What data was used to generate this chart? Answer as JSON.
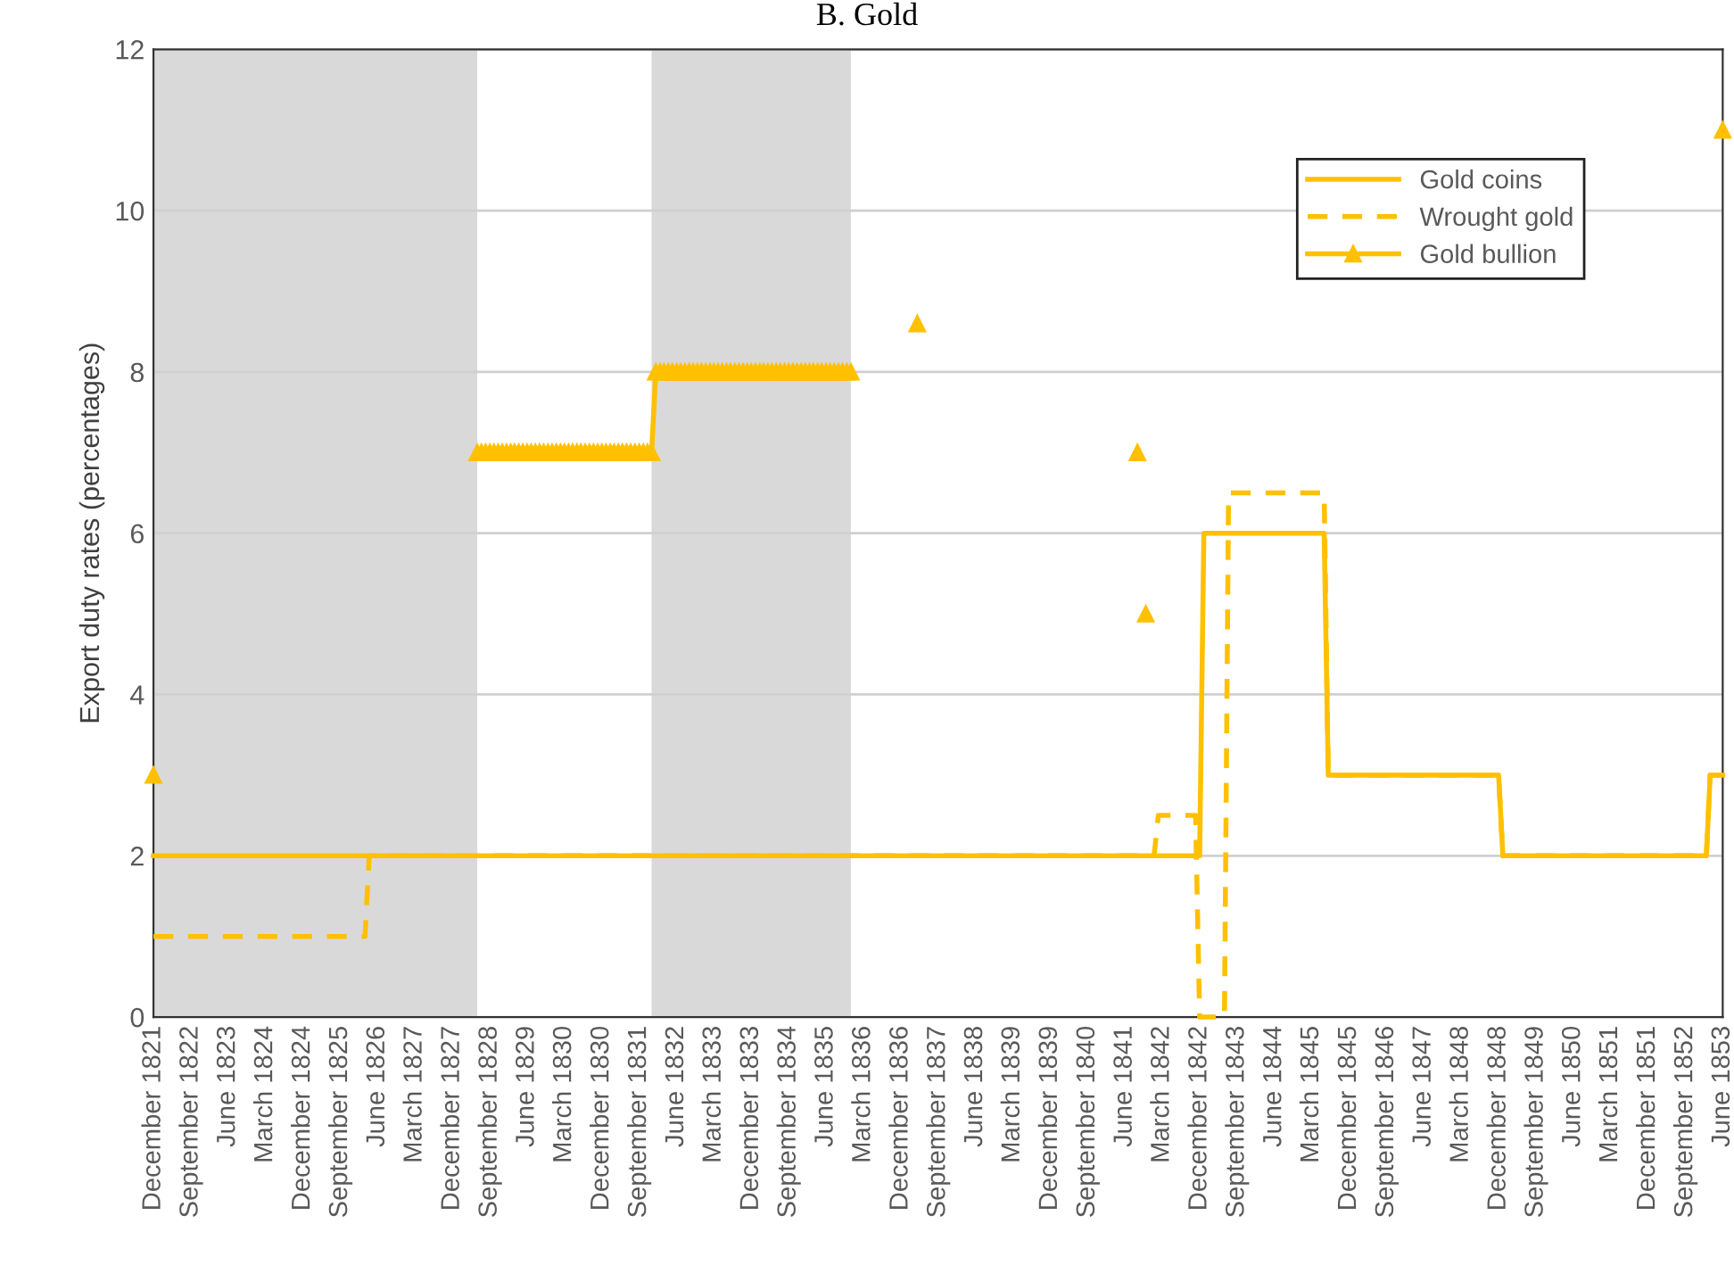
{
  "chart_data": {
    "type": "line",
    "title": "B. Gold",
    "ylabel": "Export duty rates (percentages)",
    "xlim": [
      "1821-12",
      "1853-06"
    ],
    "ylim": [
      0,
      12
    ],
    "yticks": [
      0,
      2,
      4,
      6,
      8,
      10,
      12
    ],
    "xticks": [
      {
        "value": "1821-12",
        "label": "December 1821"
      },
      {
        "value": "1822-09",
        "label": "September 1822"
      },
      {
        "value": "1823-06",
        "label": "June 1823"
      },
      {
        "value": "1824-03",
        "label": "March 1824"
      },
      {
        "value": "1824-12",
        "label": "December 1824"
      },
      {
        "value": "1825-09",
        "label": "September 1825"
      },
      {
        "value": "1826-06",
        "label": "June 1826"
      },
      {
        "value": "1827-03",
        "label": "March 1827"
      },
      {
        "value": "1827-12",
        "label": "December 1827"
      },
      {
        "value": "1828-09",
        "label": "September 1828"
      },
      {
        "value": "1829-06",
        "label": "June 1829"
      },
      {
        "value": "1830-03",
        "label": "March 1830"
      },
      {
        "value": "1830-12",
        "label": "December 1830"
      },
      {
        "value": "1831-09",
        "label": "September 1831"
      },
      {
        "value": "1832-06",
        "label": "June 1832"
      },
      {
        "value": "1833-03",
        "label": "March 1833"
      },
      {
        "value": "1833-12",
        "label": "December 1833"
      },
      {
        "value": "1834-09",
        "label": "September 1834"
      },
      {
        "value": "1835-06",
        "label": "June 1835"
      },
      {
        "value": "1836-03",
        "label": "March 1836"
      },
      {
        "value": "1836-12",
        "label": "December 1836"
      },
      {
        "value": "1837-09",
        "label": "September 1837"
      },
      {
        "value": "1838-06",
        "label": "June 1838"
      },
      {
        "value": "1839-03",
        "label": "March 1839"
      },
      {
        "value": "1839-12",
        "label": "December 1839"
      },
      {
        "value": "1840-09",
        "label": "September 1840"
      },
      {
        "value": "1841-06",
        "label": "June 1841"
      },
      {
        "value": "1842-03",
        "label": "March 1842"
      },
      {
        "value": "1842-12",
        "label": "December 1842"
      },
      {
        "value": "1843-09",
        "label": "September 1843"
      },
      {
        "value": "1844-06",
        "label": "June 1844"
      },
      {
        "value": "1845-03",
        "label": "March 1845"
      },
      {
        "value": "1845-12",
        "label": "December 1845"
      },
      {
        "value": "1846-09",
        "label": "September 1846"
      },
      {
        "value": "1847-06",
        "label": "June 1847"
      },
      {
        "value": "1848-03",
        "label": "March 1848"
      },
      {
        "value": "1848-12",
        "label": "December 1848"
      },
      {
        "value": "1849-09",
        "label": "September 1849"
      },
      {
        "value": "1850-06",
        "label": "June 1850"
      },
      {
        "value": "1851-03",
        "label": "March 1851"
      },
      {
        "value": "1851-12",
        "label": "December 1851"
      },
      {
        "value": "1852-09",
        "label": "September 1852"
      },
      {
        "value": "1853-06",
        "label": "June 1853"
      }
    ],
    "grid": "y",
    "legend": "top right",
    "bands": [
      {
        "axis": "x",
        "from": "1821-12",
        "to": "1828-06",
        "color": "#d9d9d9"
      },
      {
        "axis": "x",
        "from": "1831-12",
        "to": "1835-12",
        "color": "#d9d9d9"
      }
    ],
    "series": [
      {
        "name": "Gold coins",
        "color": "#ffc000",
        "line_style": "solid",
        "marker": "none",
        "x": [
          "1821-12",
          "1842-12",
          "1843-01",
          "1845-06",
          "1845-07",
          "1848-12",
          "1849-01",
          "1853-02",
          "1853-03",
          "1853-06"
        ],
        "values": [
          2,
          2,
          6,
          6,
          3,
          3,
          2,
          2,
          3,
          3
        ]
      },
      {
        "name": "Wrought gold",
        "color": "#ffc000",
        "line_style": "dashed",
        "marker": "none",
        "x": [
          "1821-12",
          "1826-03",
          "1826-04",
          "1842-01",
          "1842-02",
          "1842-11",
          "1842-12",
          "1843-06",
          "1843-07",
          "1845-06",
          "1845-07",
          "1848-12",
          "1849-01",
          "1853-02",
          "1853-03",
          "1853-06"
        ],
        "values": [
          1,
          1,
          2,
          2,
          2.5,
          2.5,
          0,
          0,
          6.5,
          6.5,
          3,
          3,
          2,
          2,
          3,
          3
        ]
      },
      {
        "name": "Gold bullion",
        "color": "#ffc000",
        "line_style": "solid",
        "marker": "triangle",
        "x": [
          "1821-12",
          "1822-01",
          "1828-06",
          "1828-07",
          "1828-08",
          "1828-09",
          "1828-10",
          "1828-11",
          "1828-12",
          "1829-01",
          "1829-02",
          "1829-03",
          "1829-04",
          "1829-05",
          "1829-06",
          "1829-07",
          "1829-08",
          "1829-09",
          "1829-10",
          "1829-11",
          "1829-12",
          "1830-01",
          "1830-02",
          "1830-03",
          "1830-04",
          "1830-05",
          "1830-06",
          "1830-07",
          "1830-08",
          "1830-09",
          "1830-10",
          "1830-11",
          "1830-12",
          "1831-01",
          "1831-02",
          "1831-03",
          "1831-04",
          "1831-05",
          "1831-06",
          "1831-07",
          "1831-08",
          "1831-09",
          "1831-10",
          "1831-11",
          "1831-12",
          "1832-01",
          "1832-02",
          "1832-03",
          "1832-04",
          "1832-05",
          "1832-06",
          "1832-07",
          "1832-08",
          "1832-09",
          "1832-10",
          "1832-11",
          "1832-12",
          "1833-01",
          "1833-02",
          "1833-03",
          "1833-04",
          "1833-05",
          "1833-06",
          "1833-07",
          "1833-08",
          "1833-09",
          "1833-10",
          "1833-11",
          "1833-12",
          "1834-01",
          "1834-02",
          "1834-03",
          "1834-04",
          "1834-05",
          "1834-06",
          "1834-07",
          "1834-08",
          "1834-09",
          "1834-10",
          "1834-11",
          "1834-12",
          "1835-01",
          "1835-02",
          "1835-03",
          "1835-04",
          "1835-05",
          "1835-06",
          "1835-07",
          "1835-08",
          "1835-09",
          "1835-10",
          "1835-11",
          "1835-12",
          "1836-01",
          "1837-04",
          "1837-05",
          "1841-09",
          "1841-10",
          "1841-11",
          "1841-12",
          "1853-06"
        ],
        "values": [
          3,
          null,
          7,
          7,
          7,
          7,
          7,
          7,
          7,
          7,
          7,
          7,
          7,
          7,
          7,
          7,
          7,
          7,
          7,
          7,
          7,
          7,
          7,
          7,
          7,
          7,
          7,
          7,
          7,
          7,
          7,
          7,
          7,
          7,
          7,
          7,
          7,
          7,
          7,
          7,
          7,
          7,
          7,
          7,
          7,
          8,
          8,
          8,
          8,
          8,
          8,
          8,
          8,
          8,
          8,
          8,
          8,
          8,
          8,
          8,
          8,
          8,
          8,
          8,
          8,
          8,
          8,
          8,
          8,
          8,
          8,
          8,
          8,
          8,
          8,
          8,
          8,
          8,
          8,
          8,
          8,
          8,
          8,
          8,
          8,
          8,
          8,
          8,
          8,
          8,
          8,
          8,
          8,
          null,
          8.6,
          null,
          7,
          null,
          5,
          null,
          11
        ]
      }
    ]
  }
}
